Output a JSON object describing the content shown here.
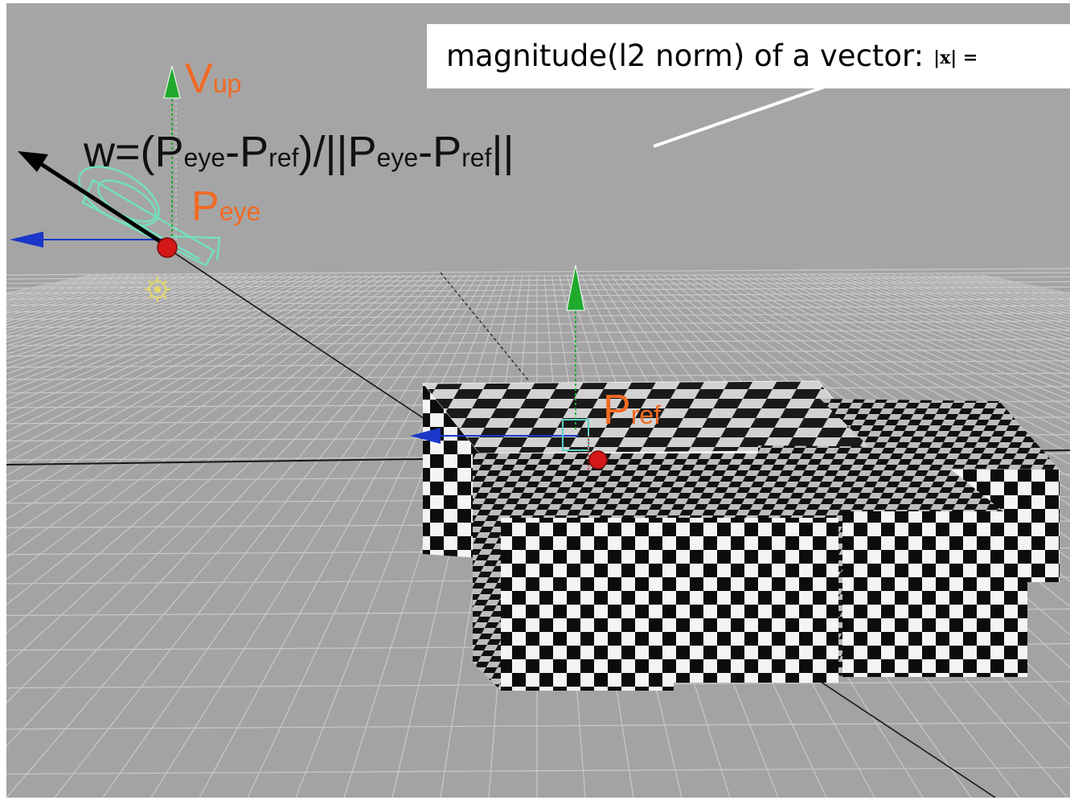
{
  "callout": {
    "text": "magnitude(l2 norm) of a vector:",
    "symbol": "|x| ="
  },
  "formula": {
    "w_prefix": "w=(",
    "p1": "P",
    "s1": "eye",
    "minus1": "-P",
    "s2": "ref",
    "mid": ")/||P",
    "s3": "eye",
    "minus2": "-P",
    "s4": "ref",
    "end": "||"
  },
  "labels": {
    "vup_main": "V",
    "vup_sub": "up",
    "peye_main": "P",
    "peye_sub": "eye",
    "pref_main": "P",
    "pref_sub": "ref"
  },
  "colors": {
    "background": "#a3a3a3",
    "label": "#f26a22",
    "up_arrow": "#1faa2c",
    "side_arrow": "#1a37c8",
    "point": "#d41818",
    "camera": "#6fe6c2"
  },
  "icons": {
    "camera": "camera-wireframe-icon",
    "light": "light-gizmo-icon"
  }
}
